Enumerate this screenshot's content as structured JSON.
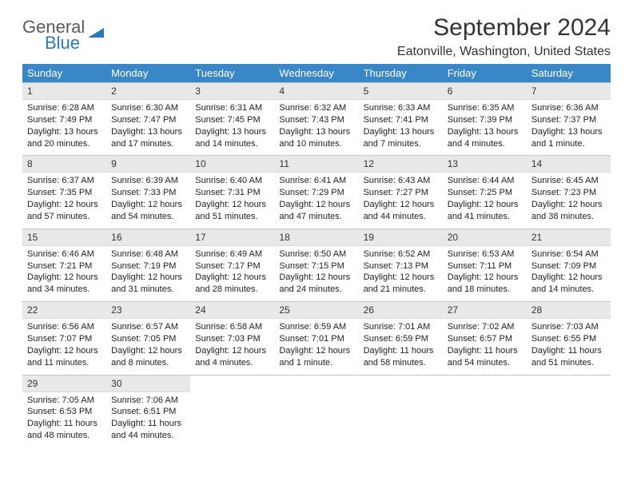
{
  "logo": {
    "main": "General",
    "sub": "Blue"
  },
  "title": "September 2024",
  "location": "Eatonville, Washington, United States",
  "colors": {
    "header_bg": "#3a87c8",
    "header_fg": "#ffffff",
    "daynum_bg": "#e8e8e8",
    "grid_line": "#c5c5c5",
    "logo_gray": "#5a5a5a",
    "logo_blue": "#2b79bd"
  },
  "weekdays": [
    "Sunday",
    "Monday",
    "Tuesday",
    "Wednesday",
    "Thursday",
    "Friday",
    "Saturday"
  ],
  "weeks": [
    [
      {
        "n": "1",
        "sr": "Sunrise: 6:28 AM",
        "ss": "Sunset: 7:49 PM",
        "dl1": "Daylight: 13 hours",
        "dl2": "and 20 minutes."
      },
      {
        "n": "2",
        "sr": "Sunrise: 6:30 AM",
        "ss": "Sunset: 7:47 PM",
        "dl1": "Daylight: 13 hours",
        "dl2": "and 17 minutes."
      },
      {
        "n": "3",
        "sr": "Sunrise: 6:31 AM",
        "ss": "Sunset: 7:45 PM",
        "dl1": "Daylight: 13 hours",
        "dl2": "and 14 minutes."
      },
      {
        "n": "4",
        "sr": "Sunrise: 6:32 AM",
        "ss": "Sunset: 7:43 PM",
        "dl1": "Daylight: 13 hours",
        "dl2": "and 10 minutes."
      },
      {
        "n": "5",
        "sr": "Sunrise: 6:33 AM",
        "ss": "Sunset: 7:41 PM",
        "dl1": "Daylight: 13 hours",
        "dl2": "and 7 minutes."
      },
      {
        "n": "6",
        "sr": "Sunrise: 6:35 AM",
        "ss": "Sunset: 7:39 PM",
        "dl1": "Daylight: 13 hours",
        "dl2": "and 4 minutes."
      },
      {
        "n": "7",
        "sr": "Sunrise: 6:36 AM",
        "ss": "Sunset: 7:37 PM",
        "dl1": "Daylight: 13 hours",
        "dl2": "and 1 minute."
      }
    ],
    [
      {
        "n": "8",
        "sr": "Sunrise: 6:37 AM",
        "ss": "Sunset: 7:35 PM",
        "dl1": "Daylight: 12 hours",
        "dl2": "and 57 minutes."
      },
      {
        "n": "9",
        "sr": "Sunrise: 6:39 AM",
        "ss": "Sunset: 7:33 PM",
        "dl1": "Daylight: 12 hours",
        "dl2": "and 54 minutes."
      },
      {
        "n": "10",
        "sr": "Sunrise: 6:40 AM",
        "ss": "Sunset: 7:31 PM",
        "dl1": "Daylight: 12 hours",
        "dl2": "and 51 minutes."
      },
      {
        "n": "11",
        "sr": "Sunrise: 6:41 AM",
        "ss": "Sunset: 7:29 PM",
        "dl1": "Daylight: 12 hours",
        "dl2": "and 47 minutes."
      },
      {
        "n": "12",
        "sr": "Sunrise: 6:43 AM",
        "ss": "Sunset: 7:27 PM",
        "dl1": "Daylight: 12 hours",
        "dl2": "and 44 minutes."
      },
      {
        "n": "13",
        "sr": "Sunrise: 6:44 AM",
        "ss": "Sunset: 7:25 PM",
        "dl1": "Daylight: 12 hours",
        "dl2": "and 41 minutes."
      },
      {
        "n": "14",
        "sr": "Sunrise: 6:45 AM",
        "ss": "Sunset: 7:23 PM",
        "dl1": "Daylight: 12 hours",
        "dl2": "and 38 minutes."
      }
    ],
    [
      {
        "n": "15",
        "sr": "Sunrise: 6:46 AM",
        "ss": "Sunset: 7:21 PM",
        "dl1": "Daylight: 12 hours",
        "dl2": "and 34 minutes."
      },
      {
        "n": "16",
        "sr": "Sunrise: 6:48 AM",
        "ss": "Sunset: 7:19 PM",
        "dl1": "Daylight: 12 hours",
        "dl2": "and 31 minutes."
      },
      {
        "n": "17",
        "sr": "Sunrise: 6:49 AM",
        "ss": "Sunset: 7:17 PM",
        "dl1": "Daylight: 12 hours",
        "dl2": "and 28 minutes."
      },
      {
        "n": "18",
        "sr": "Sunrise: 6:50 AM",
        "ss": "Sunset: 7:15 PM",
        "dl1": "Daylight: 12 hours",
        "dl2": "and 24 minutes."
      },
      {
        "n": "19",
        "sr": "Sunrise: 6:52 AM",
        "ss": "Sunset: 7:13 PM",
        "dl1": "Daylight: 12 hours",
        "dl2": "and 21 minutes."
      },
      {
        "n": "20",
        "sr": "Sunrise: 6:53 AM",
        "ss": "Sunset: 7:11 PM",
        "dl1": "Daylight: 12 hours",
        "dl2": "and 18 minutes."
      },
      {
        "n": "21",
        "sr": "Sunrise: 6:54 AM",
        "ss": "Sunset: 7:09 PM",
        "dl1": "Daylight: 12 hours",
        "dl2": "and 14 minutes."
      }
    ],
    [
      {
        "n": "22",
        "sr": "Sunrise: 6:56 AM",
        "ss": "Sunset: 7:07 PM",
        "dl1": "Daylight: 12 hours",
        "dl2": "and 11 minutes."
      },
      {
        "n": "23",
        "sr": "Sunrise: 6:57 AM",
        "ss": "Sunset: 7:05 PM",
        "dl1": "Daylight: 12 hours",
        "dl2": "and 8 minutes."
      },
      {
        "n": "24",
        "sr": "Sunrise: 6:58 AM",
        "ss": "Sunset: 7:03 PM",
        "dl1": "Daylight: 12 hours",
        "dl2": "and 4 minutes."
      },
      {
        "n": "25",
        "sr": "Sunrise: 6:59 AM",
        "ss": "Sunset: 7:01 PM",
        "dl1": "Daylight: 12 hours",
        "dl2": "and 1 minute."
      },
      {
        "n": "26",
        "sr": "Sunrise: 7:01 AM",
        "ss": "Sunset: 6:59 PM",
        "dl1": "Daylight: 11 hours",
        "dl2": "and 58 minutes."
      },
      {
        "n": "27",
        "sr": "Sunrise: 7:02 AM",
        "ss": "Sunset: 6:57 PM",
        "dl1": "Daylight: 11 hours",
        "dl2": "and 54 minutes."
      },
      {
        "n": "28",
        "sr": "Sunrise: 7:03 AM",
        "ss": "Sunset: 6:55 PM",
        "dl1": "Daylight: 11 hours",
        "dl2": "and 51 minutes."
      }
    ],
    [
      {
        "n": "29",
        "sr": "Sunrise: 7:05 AM",
        "ss": "Sunset: 6:53 PM",
        "dl1": "Daylight: 11 hours",
        "dl2": "and 48 minutes."
      },
      {
        "n": "30",
        "sr": "Sunrise: 7:06 AM",
        "ss": "Sunset: 6:51 PM",
        "dl1": "Daylight: 11 hours",
        "dl2": "and 44 minutes."
      },
      {
        "empty": true
      },
      {
        "empty": true
      },
      {
        "empty": true
      },
      {
        "empty": true
      },
      {
        "empty": true
      }
    ]
  ]
}
